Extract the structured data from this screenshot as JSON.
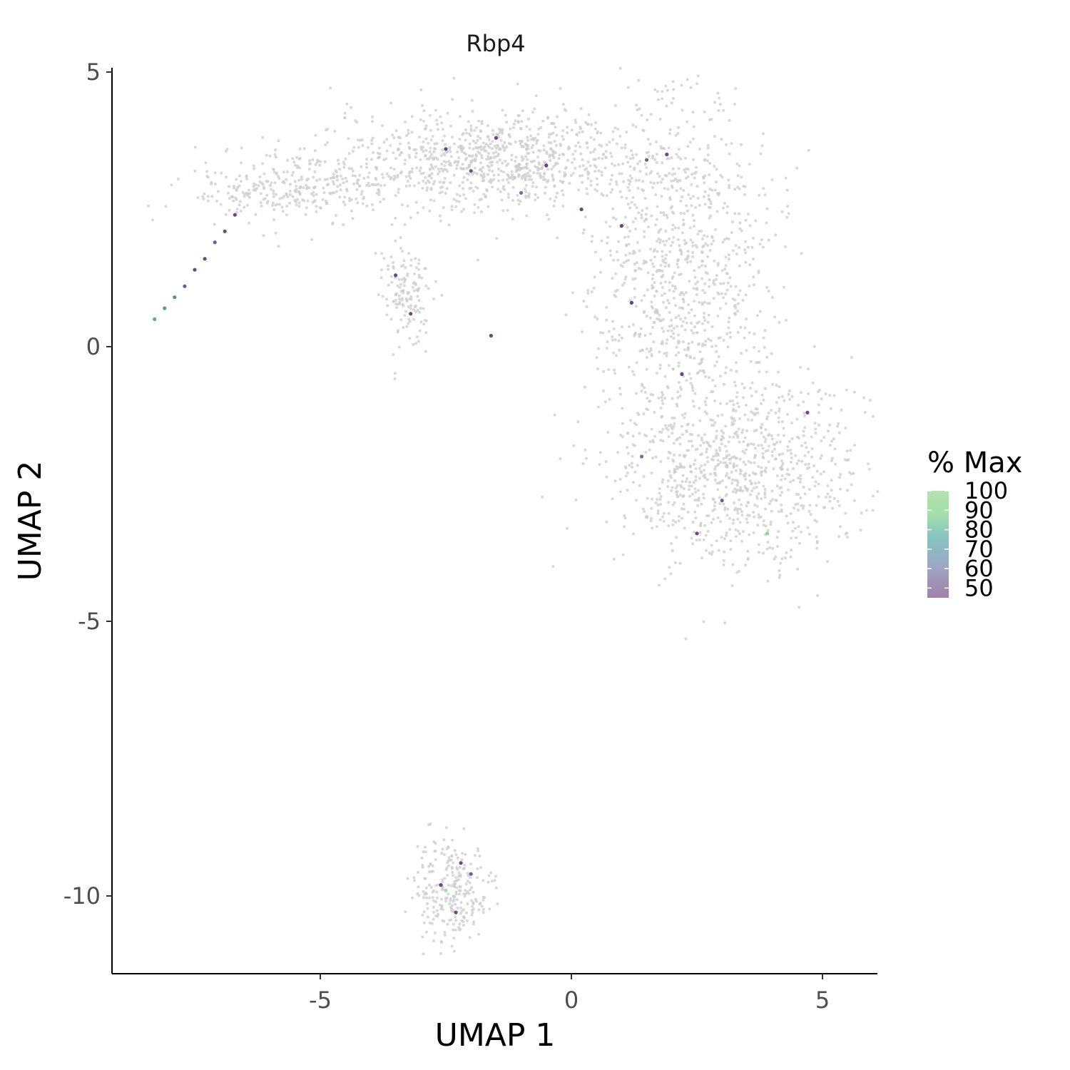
{
  "chart_data": {
    "type": "scatter",
    "title": "Rbp4",
    "xlabel": "UMAP 1",
    "ylabel": "UMAP 2",
    "xlim": [
      -9,
      6.1
    ],
    "ylim": [
      -11.4,
      5.1
    ],
    "xticks": [
      -5,
      0,
      5
    ],
    "xtick_labels": [
      "-5",
      "0",
      "5"
    ],
    "yticks": [
      5,
      0,
      -5,
      -10
    ],
    "ytick_labels": [
      "5",
      "0",
      "-5",
      "-10"
    ],
    "grid": false,
    "background_color": "#cccccc",
    "legend": {
      "title": "% Max",
      "placement": "right",
      "labels": [
        "100",
        "90",
        "80",
        "70",
        "60",
        "50"
      ],
      "values": [
        100,
        90,
        80,
        70,
        60,
        50
      ],
      "range": [
        45,
        100
      ],
      "colors": [
        "#440154",
        "#3b528b",
        "#21908c",
        "#5dc863",
        "#a6dba0"
      ]
    },
    "background_regions": [
      {
        "name": "upper-arc",
        "center": [
          -1.5,
          3.4
        ],
        "spread": [
          1.6,
          0.45
        ]
      },
      {
        "name": "left-arm",
        "center": [
          -5.5,
          2.9
        ],
        "spread": [
          1.0,
          0.3
        ]
      },
      {
        "name": "right-column",
        "center": [
          2.2,
          1.5
        ],
        "spread": [
          0.9,
          1.5
        ]
      },
      {
        "name": "lower-loop",
        "center": [
          3.2,
          -2.3
        ],
        "spread": [
          1.2,
          0.9
        ]
      },
      {
        "name": "left-island",
        "center": [
          -3.3,
          1.0
        ],
        "spread": [
          0.25,
          0.45
        ]
      },
      {
        "name": "bottom-cluster",
        "center": [
          -2.4,
          -9.9
        ],
        "spread": [
          0.4,
          0.5
        ]
      }
    ],
    "expressing_cells": [
      {
        "x": -8.3,
        "y": 0.5,
        "pct": 75
      },
      {
        "x": -8.1,
        "y": 0.7,
        "pct": 70
      },
      {
        "x": -7.9,
        "y": 0.9,
        "pct": 65
      },
      {
        "x": -7.7,
        "y": 1.1,
        "pct": 55
      },
      {
        "x": -7.5,
        "y": 1.4,
        "pct": 50
      },
      {
        "x": -7.3,
        "y": 1.6,
        "pct": 50
      },
      {
        "x": -7.1,
        "y": 1.9,
        "pct": 55
      },
      {
        "x": -6.9,
        "y": 2.1,
        "pct": 50
      },
      {
        "x": -6.7,
        "y": 2.4,
        "pct": 50
      },
      {
        "x": -2.5,
        "y": 3.6,
        "pct": 50
      },
      {
        "x": -2.0,
        "y": 3.2,
        "pct": 55
      },
      {
        "x": -1.5,
        "y": 3.8,
        "pct": 50
      },
      {
        "x": -1.0,
        "y": 2.8,
        "pct": 60
      },
      {
        "x": -0.5,
        "y": 3.3,
        "pct": 50
      },
      {
        "x": 0.2,
        "y": 2.5,
        "pct": 50
      },
      {
        "x": 1.0,
        "y": 2.2,
        "pct": 50
      },
      {
        "x": 1.5,
        "y": 3.4,
        "pct": 55
      },
      {
        "x": 1.9,
        "y": 3.5,
        "pct": 50
      },
      {
        "x": -3.5,
        "y": 1.3,
        "pct": 50
      },
      {
        "x": -3.2,
        "y": 0.6,
        "pct": 50
      },
      {
        "x": -1.6,
        "y": 0.2,
        "pct": 50
      },
      {
        "x": 1.2,
        "y": 0.8,
        "pct": 50
      },
      {
        "x": 2.2,
        "y": -0.5,
        "pct": 50
      },
      {
        "x": 1.4,
        "y": -2.0,
        "pct": 60
      },
      {
        "x": 3.0,
        "y": -2.8,
        "pct": 55
      },
      {
        "x": 3.9,
        "y": -3.4,
        "pct": 90
      },
      {
        "x": 1.5,
        "y": -3.1,
        "pct": 100
      },
      {
        "x": 2.5,
        "y": -3.4,
        "pct": 50
      },
      {
        "x": 4.7,
        "y": -1.2,
        "pct": 50
      },
      {
        "x": -2.2,
        "y": -9.4,
        "pct": 50
      },
      {
        "x": -2.6,
        "y": -9.8,
        "pct": 50
      },
      {
        "x": -2.5,
        "y": -9.9,
        "pct": 95
      },
      {
        "x": -2.0,
        "y": -9.6,
        "pct": 55
      },
      {
        "x": -2.3,
        "y": -10.3,
        "pct": 50
      }
    ]
  }
}
